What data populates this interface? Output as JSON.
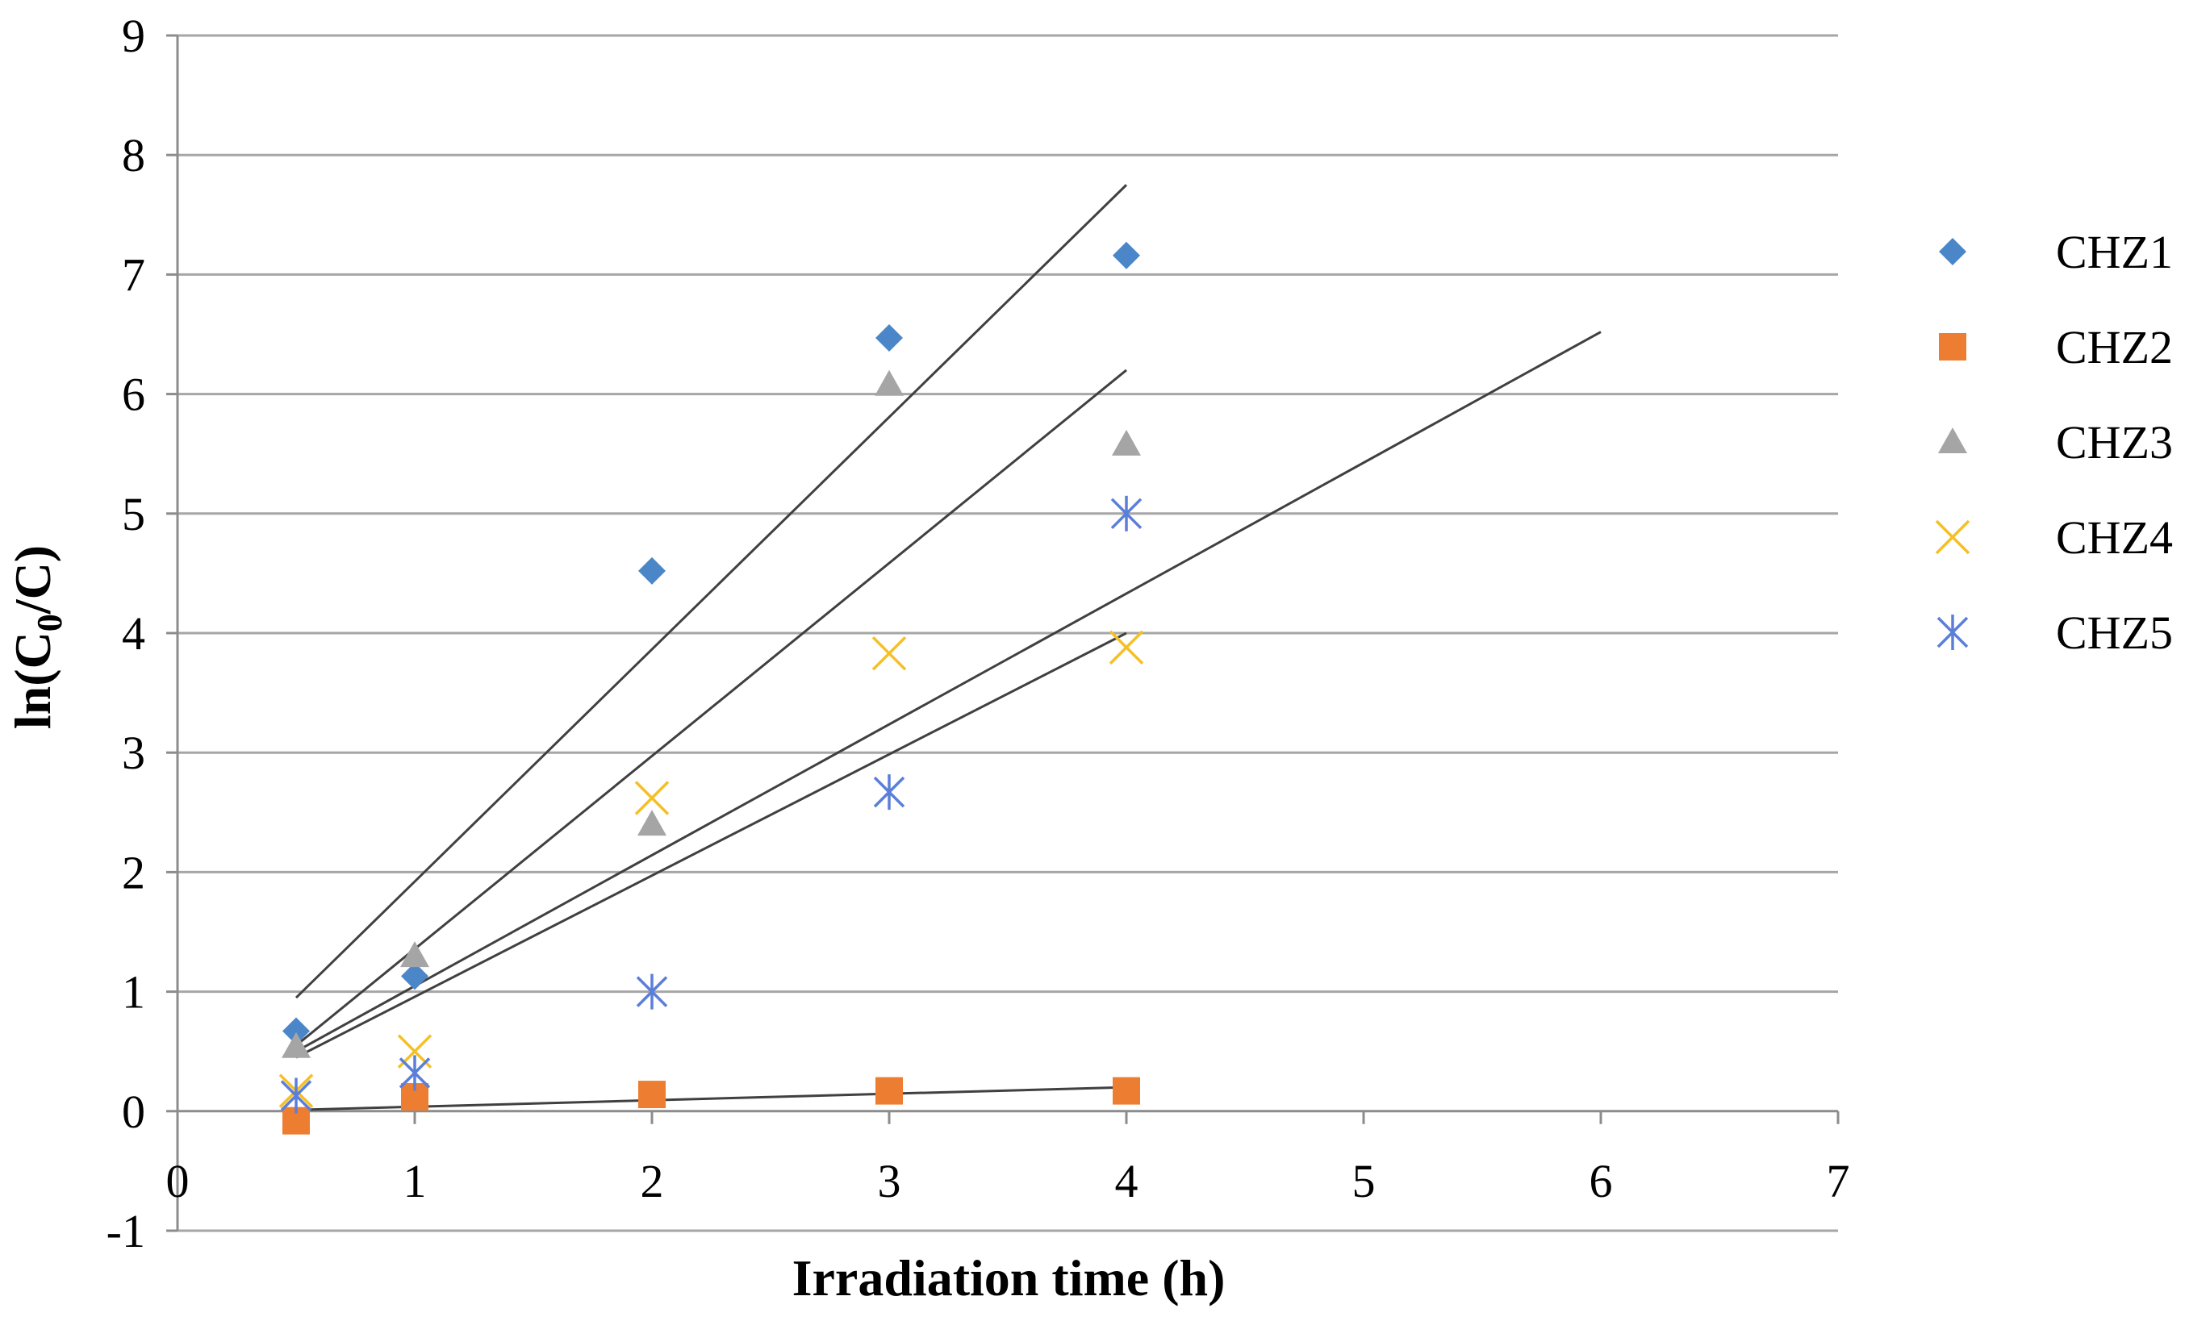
{
  "chart_data": {
    "type": "scatter",
    "title": "",
    "xlabel": "Irradiation time (h)",
    "ylabel_main": "ln(C",
    "ylabel_sub": "0",
    "ylabel_end": "/C)",
    "xlim": [
      0,
      7
    ],
    "ylim": [
      -1,
      9
    ],
    "xticks": [
      "0",
      "1",
      "2",
      "3",
      "4",
      "5",
      "6",
      "7"
    ],
    "yticks": [
      "-1",
      "0",
      "1",
      "2",
      "3",
      "4",
      "5",
      "6",
      "7",
      "8",
      "9"
    ],
    "grid": "horizontal",
    "legend": "right",
    "series": [
      {
        "name": "CHZ1",
        "marker": "diamond",
        "color": "#4a86c8",
        "x": [
          0.5,
          1,
          2,
          3,
          4
        ],
        "y": [
          0.67,
          1.13,
          4.52,
          6.47,
          7.16
        ],
        "trend": {
          "x": [
            0.5,
            4
          ],
          "y": [
            0.95,
            7.75
          ]
        }
      },
      {
        "name": "CHZ2",
        "marker": "square",
        "color": "#ed7d31",
        "x": [
          0.5,
          1,
          2,
          3,
          4
        ],
        "y": [
          -0.08,
          0.12,
          0.14,
          0.17,
          0.17
        ],
        "trend": {
          "x": [
            0.5,
            4
          ],
          "y": [
            0.01,
            0.2
          ]
        }
      },
      {
        "name": "CHZ3",
        "marker": "triangle",
        "color": "#a5a5a5",
        "x": [
          0.5,
          1,
          2,
          3,
          4
        ],
        "y": [
          0.54,
          1.3,
          2.4,
          6.08,
          5.58
        ],
        "trend": {
          "x": [
            0.5,
            4
          ],
          "y": [
            0.55,
            6.2
          ]
        }
      },
      {
        "name": "CHZ4",
        "marker": "x",
        "color": "#f5c026",
        "x": [
          0.5,
          1,
          2,
          3,
          4
        ],
        "y": [
          0.17,
          0.5,
          2.62,
          3.83,
          3.88
        ],
        "trend": {
          "x": [
            0.5,
            6
          ],
          "y": [
            0.5,
            6.52
          ]
        }
      },
      {
        "name": "CHZ5",
        "marker": "star",
        "color": "#5b7fd9",
        "x": [
          0.5,
          1,
          2,
          3,
          4
        ],
        "y": [
          0.13,
          0.32,
          1.0,
          2.67,
          5.0
        ],
        "trend": {
          "x": [
            0.5,
            4
          ],
          "y": [
            0.45,
            4.0
          ]
        }
      }
    ]
  }
}
